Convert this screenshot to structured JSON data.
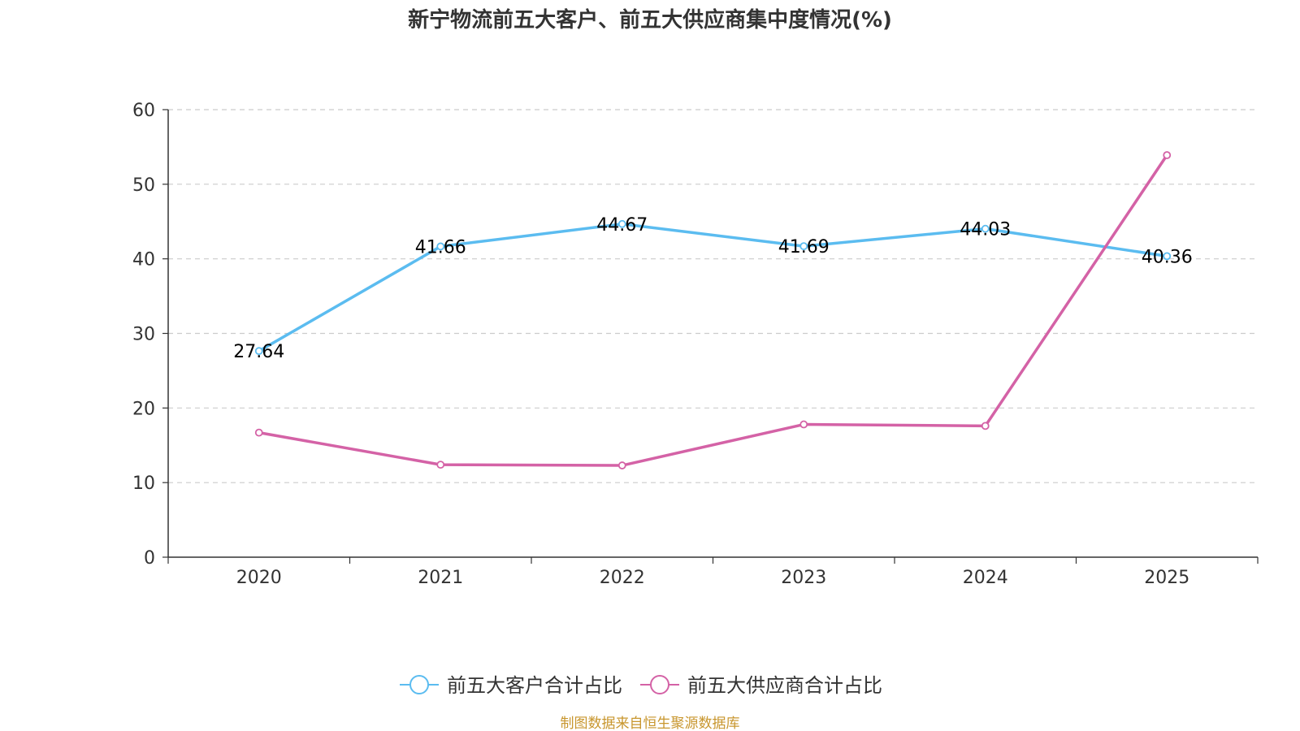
{
  "chart_data": {
    "type": "line",
    "title": "新宁物流前五大客户、前五大供应商集中度情况(%)",
    "categories": [
      "2020",
      "2021",
      "2022",
      "2023",
      "2024",
      "2025"
    ],
    "ylim": [
      0,
      60
    ],
    "yticks": [
      "0",
      "10",
      "20",
      "30",
      "40",
      "50",
      "60"
    ],
    "grid": true,
    "legend_position": "bottom-center",
    "series": [
      {
        "name": "前五大客户合计占比",
        "color": "#5bbcf0",
        "values": [
          27.64,
          41.66,
          44.67,
          41.69,
          44.03,
          40.36
        ],
        "labels": [
          "27.64",
          "41.66",
          "44.67",
          "41.69",
          "44.03",
          "40.36"
        ]
      },
      {
        "name": "前五大供应商合计占比",
        "color": "#d462a6",
        "values": [
          16.7,
          12.4,
          12.3,
          17.8,
          17.6,
          53.9
        ],
        "labels": []
      }
    ]
  },
  "source": {
    "text": "制图数据来自恒生聚源数据库",
    "color": "#c8962e"
  }
}
